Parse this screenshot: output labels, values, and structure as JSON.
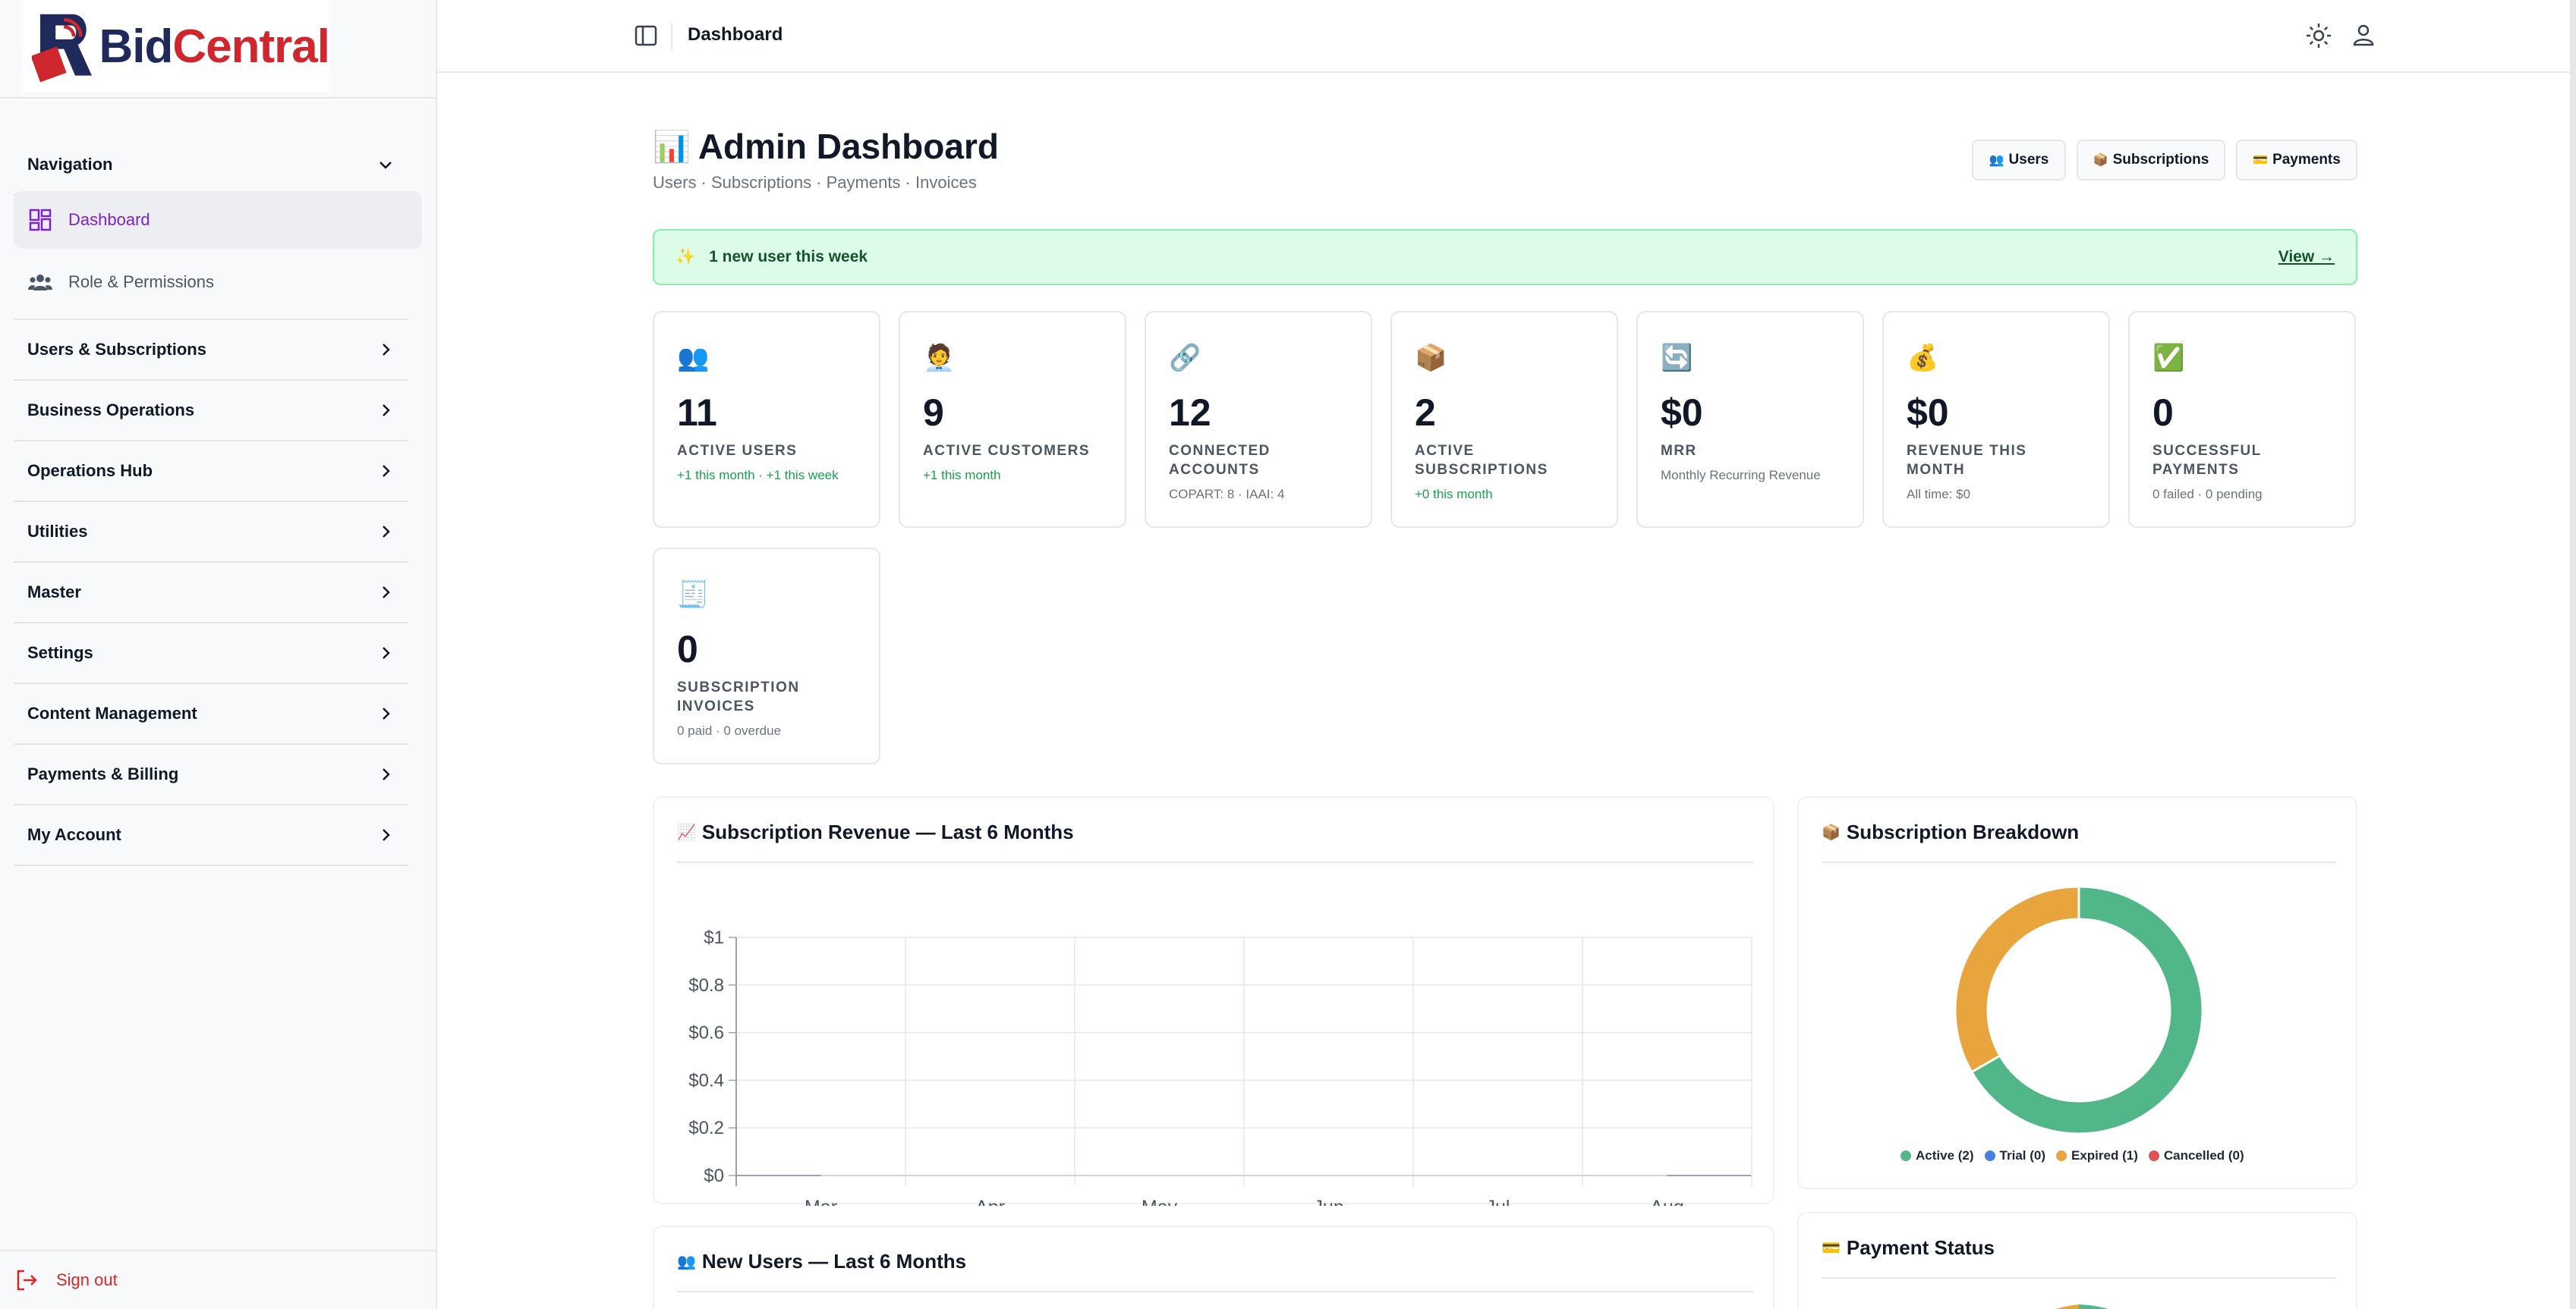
{
  "brand": {
    "part1": "Bid",
    "part2": "Central"
  },
  "sidebar": {
    "nav_header": "Navigation",
    "items": [
      {
        "label": "Dashboard",
        "icon": "dashboard-grid-icon",
        "active": true
      },
      {
        "label": "Role & Permissions",
        "icon": "people-group-icon",
        "active": false
      }
    ],
    "sections": [
      "Users & Subscriptions",
      "Business Operations",
      "Operations Hub",
      "Utilities",
      "Master",
      "Settings",
      "Content Management",
      "Payments & Billing",
      "My Account"
    ],
    "signout": "Sign out"
  },
  "topbar": {
    "title": "Dashboard"
  },
  "header": {
    "emoji": "📊",
    "title": "Admin Dashboard",
    "subtitle": "Users · Subscriptions · Payments · Invoices",
    "buttons": [
      {
        "emoji": "👥",
        "label": "Users"
      },
      {
        "emoji": "📦",
        "label": "Subscriptions"
      },
      {
        "emoji": "💳",
        "label": "Payments"
      }
    ]
  },
  "banner": {
    "emoji": "✨",
    "message": "1 new user this week",
    "link": "View →"
  },
  "stats": [
    {
      "emoji": "👥",
      "value": "11",
      "label": "ACTIVE USERS",
      "sub": "+1 this month · +1 this week",
      "sub_color": "green"
    },
    {
      "emoji": "🧑‍💼",
      "value": "9",
      "label": "ACTIVE CUSTOMERS",
      "sub": "+1 this month",
      "sub_color": "green"
    },
    {
      "emoji": "🔗",
      "value": "12",
      "label": "CONNECTED ACCOUNTS",
      "sub": "COPART: 8 · IAAI: 4",
      "sub_color": "gray"
    },
    {
      "emoji": "📦",
      "value": "2",
      "label": "ACTIVE SUBSCRIPTIONS",
      "sub": "+0 this month",
      "sub_color": "green"
    },
    {
      "emoji": "🔄",
      "value": "$0",
      "label": "MRR",
      "sub": "Monthly Recurring Revenue",
      "sub_color": "gray"
    },
    {
      "emoji": "💰",
      "value": "$0",
      "label": "REVENUE THIS MONTH",
      "sub": "All time: $0",
      "sub_color": "gray"
    },
    {
      "emoji": "✅",
      "value": "0",
      "label": "SUCCESSFUL PAYMENTS",
      "sub": "0 failed · 0 pending",
      "sub_color": "gray"
    },
    {
      "emoji": "🧾",
      "value": "0",
      "label": "SUBSCRIPTION INVOICES",
      "sub": "0 paid · 0 overdue",
      "sub_color": "gray"
    }
  ],
  "panels": {
    "revenue": {
      "emoji": "📈",
      "title": "Subscription Revenue — Last 6 Months"
    },
    "breakdown": {
      "emoji": "📦",
      "title": "Subscription Breakdown"
    },
    "new_users": {
      "emoji": "👥",
      "title": "New Users — Last 6 Months"
    },
    "payment_status": {
      "emoji": "💳",
      "title": "Payment Status"
    }
  },
  "colors": {
    "active": "#52b788",
    "trial": "#4a7fe0",
    "expired": "#e8a53d",
    "cancelled": "#e05252"
  },
  "chart_data": [
    {
      "type": "line",
      "title": "Subscription Revenue — Last 6 Months",
      "categories": [
        "Mar",
        "Apr",
        "May",
        "Jun",
        "Jul",
        "Aug"
      ],
      "series": [
        {
          "values": [
            0,
            0,
            0,
            0,
            0,
            0
          ]
        }
      ],
      "yticks": [
        "$0",
        "$0.2",
        "$0.4",
        "$0.6",
        "$0.8",
        "$1"
      ],
      "ylim": [
        0,
        1
      ],
      "grid": true
    },
    {
      "type": "pie",
      "title": "Subscription Breakdown",
      "categories": [
        "Active (2)",
        "Trial (0)",
        "Expired (1)",
        "Cancelled (0)"
      ],
      "values": [
        2,
        0,
        1,
        0
      ],
      "colors": [
        "#52b788",
        "#4a7fe0",
        "#e8a53d",
        "#e05252"
      ],
      "legend": "bottom"
    }
  ]
}
